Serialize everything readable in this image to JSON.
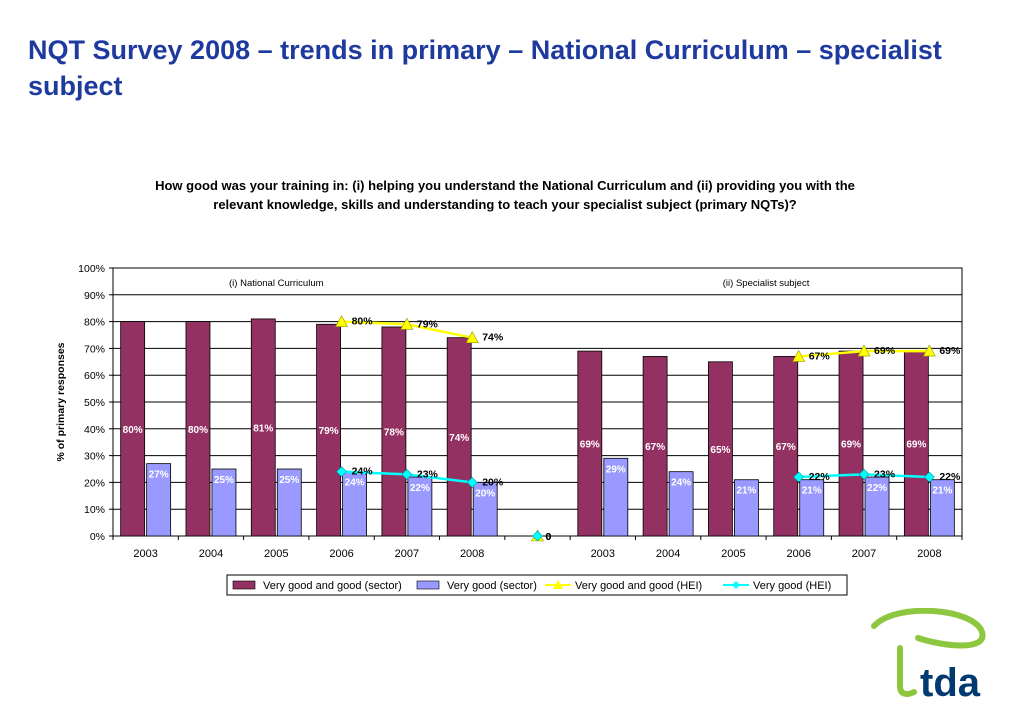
{
  "page": {
    "title": "NQT Survey 2008 – trends in primary – National Curriculum – specialist subject"
  },
  "logo": {
    "text": "tda",
    "color": "#8dc63f",
    "text_color": "#003a70"
  },
  "chart_data": {
    "type": "bar",
    "title": "How good was your training in: (i) helping you understand the National Curriculum and (ii) providing you with the relevant knowledge, skills and understanding to teach your specialist subject (primary NQTs)?",
    "ylabel": "% of primary responses",
    "ylim": [
      0,
      100
    ],
    "y_ticks": [
      "0%",
      "10%",
      "20%",
      "30%",
      "40%",
      "50%",
      "60%",
      "70%",
      "80%",
      "90%",
      "100%"
    ],
    "grid": true,
    "legend_position": "bottom",
    "panels": [
      "(i) National Curriculum",
      "(ii) Specialist subject"
    ],
    "categories": [
      "2003",
      "2004",
      "2005",
      "2006",
      "2007",
      "2008",
      "",
      "2003",
      "2004",
      "2005",
      "2006",
      "2007",
      "2008"
    ],
    "series": [
      {
        "name": "Very good and good (sector)",
        "type": "bar",
        "color": "#943163",
        "values": [
          80,
          80,
          81,
          79,
          78,
          74,
          null,
          69,
          67,
          65,
          67,
          69,
          69
        ],
        "labels": [
          "80%",
          "80%",
          "81%",
          "79%",
          "78%",
          "74%",
          "",
          "69%",
          "67%",
          "65%",
          "67%",
          "69%",
          "69%"
        ]
      },
      {
        "name": "Very good (sector)",
        "type": "bar",
        "color": "#9999ff",
        "values": [
          27,
          25,
          25,
          24,
          22,
          20,
          null,
          29,
          24,
          21,
          21,
          22,
          21
        ],
        "labels": [
          "27%",
          "25%",
          "25%",
          "24%",
          "22%",
          "20%",
          "",
          "29%",
          "24%",
          "21%",
          "21%",
          "22%",
          "21%"
        ]
      },
      {
        "name": "Very good and good (HEI)",
        "type": "line",
        "color": "#ffff00",
        "values": [
          null,
          null,
          null,
          80,
          79,
          74,
          0,
          null,
          null,
          null,
          67,
          69,
          69
        ],
        "labels": [
          "",
          "",
          "",
          "80%",
          "79%",
          "74%",
          "0",
          "",
          "",
          "",
          "67%",
          "69%",
          "69%"
        ]
      },
      {
        "name": "Very good (HEI)",
        "type": "line",
        "color": "#00ffff",
        "values": [
          null,
          null,
          null,
          24,
          23,
          20,
          0,
          null,
          null,
          null,
          22,
          23,
          22
        ],
        "labels": [
          "",
          "",
          "",
          "24%",
          "23%",
          "20%",
          "0",
          "",
          "",
          "",
          "22%",
          "23%",
          "22%"
        ]
      }
    ]
  }
}
